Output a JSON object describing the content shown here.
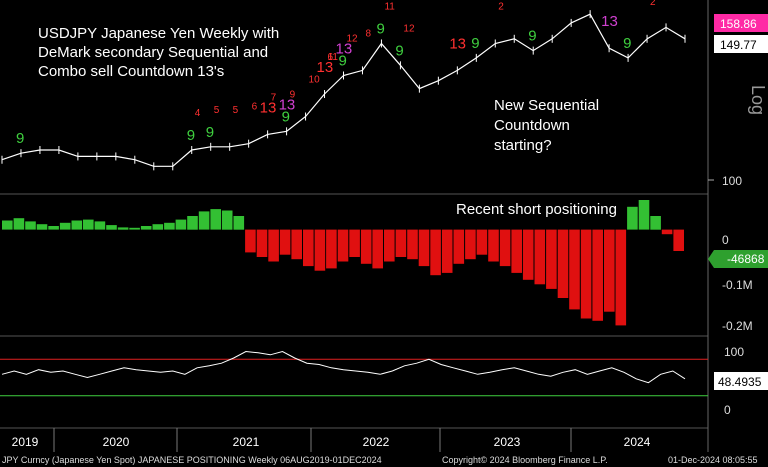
{
  "chart_data": [
    {
      "type": "line",
      "panel": "price",
      "title_lines": [
        "USDJPY Japanese Yen Weekly with",
        "DeMark secondary Sequential and",
        "Combo sell Countdown 13's"
      ],
      "annotation_lines": [
        "New Sequential",
        "Countdown",
        "starting?"
      ],
      "y_axis_label": "Log",
      "y_ticks": [
        "100"
      ],
      "price_tags": [
        {
          "value": "158.86",
          "color": "#ff2aa5"
        },
        {
          "value": "149.77",
          "color": "#ffffff"
        }
      ],
      "ylim": [
        100,
        162
      ],
      "x": [
        "2019-08",
        "2019-10",
        "2019-12",
        "2020-02",
        "2020-03",
        "2020-05",
        "2020-07",
        "2020-09",
        "2020-11",
        "2021-01",
        "2021-03",
        "2021-05",
        "2021-07",
        "2021-09",
        "2021-11",
        "2022-01",
        "2022-03",
        "2022-04",
        "2022-06",
        "2022-08",
        "2022-10",
        "2022-11",
        "2023-01",
        "2023-03",
        "2023-05",
        "2023-07",
        "2023-09",
        "2023-11",
        "2024-01",
        "2024-03",
        "2024-05",
        "2024-07",
        "2024-08",
        "2024-09",
        "2024-10",
        "2024-11",
        "2024-12"
      ],
      "close": [
        106,
        108,
        109,
        109,
        107,
        107,
        107,
        106,
        104,
        104,
        109,
        110,
        110,
        111,
        114,
        115,
        120,
        128,
        135,
        137,
        148,
        139,
        130,
        133,
        137,
        142,
        148,
        150,
        145,
        150,
        157,
        161,
        146,
        142,
        150,
        155,
        150
      ],
      "setup_markers": [
        {
          "label": "9",
          "color": "#3fd03f"
        },
        {
          "label": "9",
          "color": "#3fd03f"
        },
        {
          "label": "9",
          "color": "#3fd03f"
        },
        {
          "label": "9",
          "color": "#3fd03f"
        },
        {
          "label": "9",
          "color": "#3fd03f"
        },
        {
          "label": "9",
          "color": "#3fd03f"
        },
        {
          "label": "9",
          "color": "#3fd03f"
        },
        {
          "label": "9",
          "color": "#3fd03f"
        },
        {
          "label": "9",
          "color": "#3fd03f"
        },
        {
          "label": "9",
          "color": "#3fd03f"
        }
      ],
      "countdown_markers": [
        {
          "label": "13",
          "color": "#ff3030"
        },
        {
          "label": "13",
          "color": "#d040d0"
        },
        {
          "label": "13",
          "color": "#ff3030"
        },
        {
          "label": "13",
          "color": "#d040d0"
        },
        {
          "label": "13",
          "color": "#ff3030"
        },
        {
          "label": "13",
          "color": "#ff3030"
        },
        {
          "label": "13",
          "color": "#d040d0"
        }
      ],
      "small_counts": [
        "4",
        "5",
        "5",
        "6",
        "7",
        "9",
        "10",
        "11",
        "12",
        "6",
        "8",
        "11",
        "12",
        "2",
        "1",
        "2"
      ]
    },
    {
      "type": "bar",
      "panel": "positioning",
      "annotation": "Recent short positioning",
      "y_ticks": [
        "0",
        "-0.1M",
        "-0.2M"
      ],
      "last_value_tag": "-46868",
      "ylim": [
        -220000,
        65000
      ],
      "colors": {
        "positive": "#33c033",
        "negative": "#e01010"
      },
      "values": [
        20000,
        25000,
        18000,
        12000,
        8000,
        15000,
        20000,
        22000,
        18000,
        10000,
        5000,
        4000,
        8000,
        12000,
        15000,
        22000,
        30000,
        40000,
        45000,
        42000,
        30000,
        -50000,
        -60000,
        -70000,
        -55000,
        -65000,
        -80000,
        -90000,
        -85000,
        -70000,
        -60000,
        -75000,
        -85000,
        -70000,
        -60000,
        -65000,
        -80000,
        -100000,
        -95000,
        -75000,
        -65000,
        -55000,
        -70000,
        -80000,
        -95000,
        -110000,
        -120000,
        -130000,
        -150000,
        -175000,
        -195000,
        -200000,
        -180000,
        -210000,
        50000,
        65000,
        30000,
        -10000,
        -47000
      ]
    },
    {
      "type": "line",
      "panel": "oscillator",
      "y_ticks": [
        "100",
        "50",
        "0"
      ],
      "last_value_tag": "48.4935",
      "ylim": [
        0,
        100
      ],
      "upper_band": 78,
      "lower_band": 22,
      "values": [
        55,
        60,
        55,
        62,
        58,
        60,
        55,
        50,
        55,
        60,
        65,
        62,
        60,
        58,
        60,
        55,
        65,
        68,
        72,
        80,
        90,
        88,
        85,
        90,
        80,
        72,
        70,
        65,
        62,
        60,
        58,
        55,
        60,
        68,
        72,
        78,
        70,
        65,
        60,
        55,
        58,
        62,
        65,
        60,
        55,
        52,
        58,
        62,
        55,
        60,
        65,
        58,
        48,
        42,
        55,
        60,
        48
      ]
    }
  ],
  "x_axis": {
    "years": [
      "2019",
      "2020",
      "2021",
      "2022",
      "2023",
      "2024"
    ]
  },
  "footer": {
    "left": "JPY Curncy (Japanese Yen Spot) JAPANESE POSITIONING  Weekly 06AUG2019-01DEC2024",
    "center": "Copyright© 2024 Bloomberg Finance L.P.",
    "right": "01-Dec-2024 08:05:55"
  }
}
